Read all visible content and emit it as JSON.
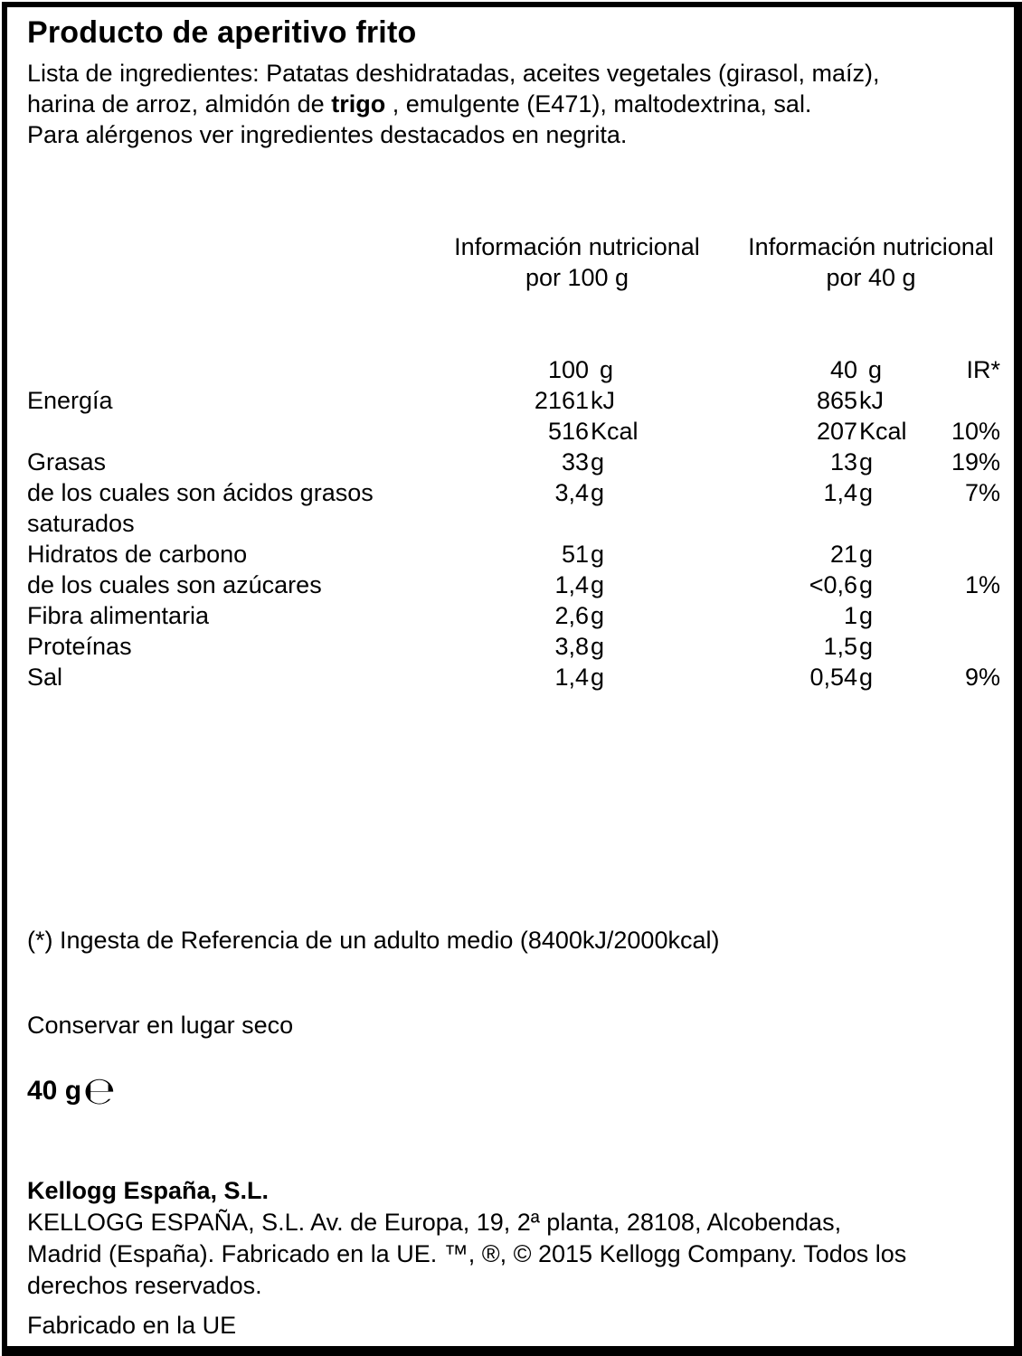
{
  "page": {
    "background_color": "#ffffff",
    "text_color": "#000000",
    "border_color": "#000000"
  },
  "header": {
    "title": "Producto de aperitivo frito",
    "ingredients_line1": "Lista de ingredientes: Patatas deshidratadas, aceites vegetales (girasol, maíz),",
    "ingredients_line2_pre": "harina de arroz, almidón de ",
    "ingredients_line2_allergen": "trigo",
    "ingredients_line2_post": " , emulgente (E471), maltodextrina, sal.",
    "allergen_note": "Para alérgenos ver ingredientes destacados en negrita."
  },
  "nutrition_table": {
    "column_header_100g_line1": "Información nutricional",
    "column_header_100g_line2": "por 100 g",
    "column_header_40g_line1": "Información nutricional",
    "column_header_40g_line2": "por 40 g",
    "subheader": {
      "per100_value": "100",
      "per100_unit": "g",
      "per40_value": "40",
      "per40_unit": "g",
      "ir_label": "IR*"
    },
    "rows": [
      {
        "label": "Energía",
        "per100_value": "2161",
        "per100_unit": "kJ",
        "per40_value": "865",
        "per40_unit": "kJ",
        "ir": ""
      },
      {
        "label": "",
        "per100_value": "516",
        "per100_unit": "Kcal",
        "per40_value": "207",
        "per40_unit": "Kcal",
        "ir": "10%"
      },
      {
        "label": "Grasas",
        "per100_value": "33",
        "per100_unit": "g",
        "per40_value": "13",
        "per40_unit": "g",
        "ir": "19%"
      },
      {
        "label": "de los cuales son ácidos grasos saturados",
        "per100_value": "3,4",
        "per100_unit": "g",
        "per40_value": "1,4",
        "per40_unit": "g",
        "ir": "7%"
      },
      {
        "label": "Hidratos de carbono",
        "per100_value": "51",
        "per100_unit": "g",
        "per40_value": "21",
        "per40_unit": "g",
        "ir": ""
      },
      {
        "label": "de los cuales son azúcares",
        "per100_value": "1,4",
        "per100_unit": "g",
        "per40_value": "<0,6",
        "per40_unit": "g",
        "ir": "1%"
      },
      {
        "label": "Fibra alimentaria",
        "per100_value": "2,6",
        "per100_unit": "g",
        "per40_value": "1",
        "per40_unit": "g",
        "ir": ""
      },
      {
        "label": "Proteínas",
        "per100_value": "3,8",
        "per100_unit": "g",
        "per40_value": "1,5",
        "per40_unit": "g",
        "ir": ""
      },
      {
        "label": "Sal",
        "per100_value": "1,4",
        "per100_unit": "g",
        "per40_value": "0,54",
        "per40_unit": "g",
        "ir": "9%"
      }
    ]
  },
  "footnote": "(*) Ingesta de Referencia de un adulto medio (8400kJ/2000kcal)",
  "storage_note": "Conservar en lugar seco",
  "net_weight": {
    "value": "40 g",
    "estimated_sign": "℮"
  },
  "manufacturer": {
    "name": "Kellogg España, S.L.",
    "address_line1": "KELLOGG ESPAÑA, S.L. Av. de Europa, 19, 2ª planta, 28108, Alcobendas,",
    "address_line2": "Madrid (España). Fabricado en la UE. ™, ®, © 2015 Kellogg Company. Todos los",
    "address_line3": "derechos reservados.",
    "made_in": "Fabricado en la UE"
  }
}
